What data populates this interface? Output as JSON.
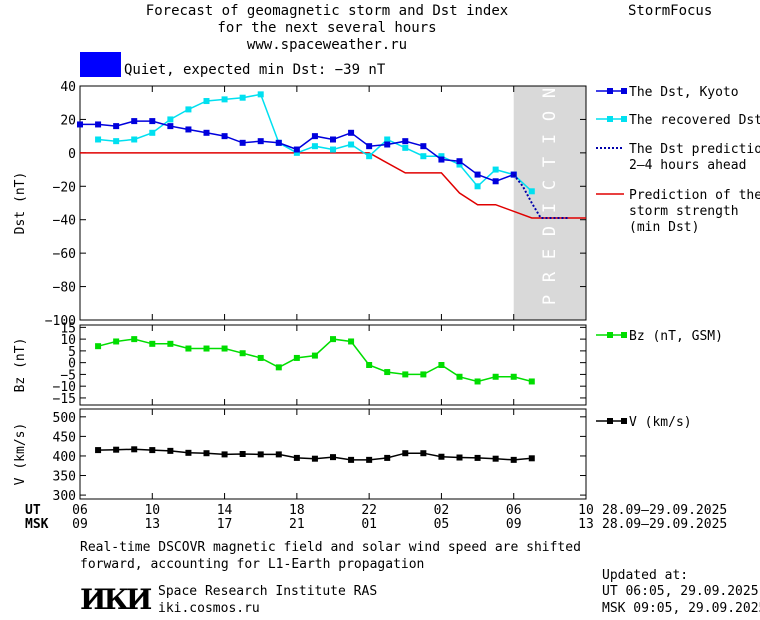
{
  "header": {
    "title_line1": "Forecast of geomagnetic storm and Dst index",
    "title_line2": "for the next several hours",
    "title_line3": "www.spaceweather.ru",
    "brand": "StormFocus"
  },
  "status": {
    "label": "Quiet, expected min Dst: −39 nT",
    "color": "#0000ff"
  },
  "footer": {
    "note_line1": "Real-time DSCOVR magnetic field and solar wind speed are shifted",
    "note_line2": "forward, accounting for L1-Earth propagation",
    "institute": "Space Research Institute RAS",
    "site": "iki.cosmos.ru",
    "logo_text": "ИКИ",
    "updated_label": "Updated at:",
    "updated_ut": "UT  06:05, 29.09.2025",
    "updated_msk": "MSK 09:05, 29.09.2025"
  },
  "time_axis": {
    "ut_label": "UT",
    "msk_label": "MSK",
    "ut_ticks": [
      "06",
      "10",
      "14",
      "18",
      "22",
      "02",
      "06",
      "10"
    ],
    "msk_ticks": [
      "09",
      "13",
      "17",
      "21",
      "01",
      "05",
      "09",
      "13"
    ],
    "ut_range": "28.09–29.09.2025",
    "msk_range": "28.09–29.09.2025"
  },
  "chart_data": [
    {
      "type": "line",
      "ylabel": "Dst (nT)",
      "ylim": [
        -100,
        40
      ],
      "yticks": [
        "40",
        "20",
        "0",
        "−20",
        "−40",
        "−60",
        "−80",
        "−100"
      ],
      "x_hours": [
        6,
        7,
        8,
        9,
        10,
        11,
        12,
        13,
        14,
        15,
        16,
        17,
        18,
        19,
        20,
        21,
        22,
        23,
        24,
        25,
        26,
        27,
        28,
        29,
        30
      ],
      "prediction_label": "PREDICTION",
      "prediction_start": 30,
      "prediction_end": 34,
      "series": [
        {
          "name": "The Dst, Kyoto",
          "color": "#0000dd",
          "marker": "square",
          "x": [
            6,
            7,
            8,
            9,
            10,
            11,
            12,
            13,
            14,
            15,
            16,
            17,
            18,
            19,
            20,
            21,
            22,
            23,
            24,
            25,
            26,
            27,
            28,
            29,
            30
          ],
          "values": [
            17,
            17,
            16,
            19,
            19,
            16,
            14,
            12,
            10,
            6,
            7,
            6,
            2,
            10,
            8,
            12,
            4,
            5,
            7,
            4,
            -4,
            -5,
            -13,
            -17,
            -13
          ]
        },
        {
          "name": "The recovered Dst",
          "color": "#00e0f0",
          "marker": "square",
          "x": [
            7,
            8,
            9,
            10,
            11,
            12,
            13,
            14,
            15,
            16,
            17,
            18,
            19,
            20,
            21,
            22,
            23,
            24,
            25,
            26,
            27,
            28,
            29,
            30,
            31
          ],
          "values": [
            8,
            7,
            8,
            12,
            20,
            26,
            31,
            32,
            33,
            35,
            6,
            0,
            4,
            2,
            5,
            -2,
            8,
            3,
            -2,
            -2,
            -7,
            -20,
            -10,
            -13,
            -23
          ]
        },
        {
          "name": "The Dst prediction 2–4 hours ahead",
          "name_line1": "The Dst prediction",
          "name_line2": "2–4 hours ahead",
          "color": "#0000aa",
          "style": "dotted",
          "x": [
            30,
            30.5,
            31,
            31.5,
            32,
            33
          ],
          "values": [
            -13,
            -20,
            -30,
            -39,
            -39,
            -39
          ]
        },
        {
          "name": "Prediction of the storm strength (min Dst)",
          "name_line1": "Prediction of the",
          "name_line2": "storm strength",
          "name_line3": "(min Dst)",
          "color": "#e00000",
          "style": "solid",
          "x": [
            6,
            22,
            24,
            26,
            27,
            28,
            29,
            31,
            34
          ],
          "values": [
            0,
            0,
            -12,
            -12,
            -24,
            -31,
            -31,
            -39,
            -39
          ]
        }
      ]
    },
    {
      "type": "line",
      "ylabel": "Bz (nT)",
      "ylim": [
        -18,
        16
      ],
      "yticks": [
        "15",
        "10",
        "5",
        "0",
        "−5",
        "−10",
        "−15"
      ],
      "series": [
        {
          "name": "Bz (nT, GSM)",
          "color": "#00dd00",
          "marker": "square",
          "x": [
            7,
            8,
            9,
            10,
            11,
            12,
            13,
            14,
            15,
            16,
            17,
            18,
            19,
            20,
            21,
            22,
            23,
            24,
            25,
            26,
            27,
            28,
            29,
            30,
            31
          ],
          "values": [
            7,
            9,
            10,
            8,
            8,
            6,
            6,
            6,
            4,
            2,
            -2,
            2,
            3,
            10,
            9,
            -1,
            -4,
            -5,
            -5,
            -1,
            -6,
            -8,
            -6,
            -6,
            -8
          ]
        }
      ]
    },
    {
      "type": "line",
      "ylabel": "V (km/s)",
      "ylim": [
        290,
        520
      ],
      "yticks": [
        "500",
        "450",
        "400",
        "350",
        "300"
      ],
      "series": [
        {
          "name": "V (km/s)",
          "color": "#000000",
          "marker": "square",
          "x": [
            7,
            8,
            9,
            10,
            11,
            12,
            13,
            14,
            15,
            16,
            17,
            18,
            19,
            20,
            21,
            22,
            23,
            24,
            25,
            26,
            27,
            28,
            29,
            30,
            31
          ],
          "values": [
            415,
            416,
            417,
            415,
            413,
            408,
            407,
            404,
            405,
            404,
            404,
            395,
            393,
            397,
            390,
            390,
            395,
            407,
            407,
            398,
            396,
            395,
            393,
            390,
            394
          ]
        }
      ]
    }
  ]
}
